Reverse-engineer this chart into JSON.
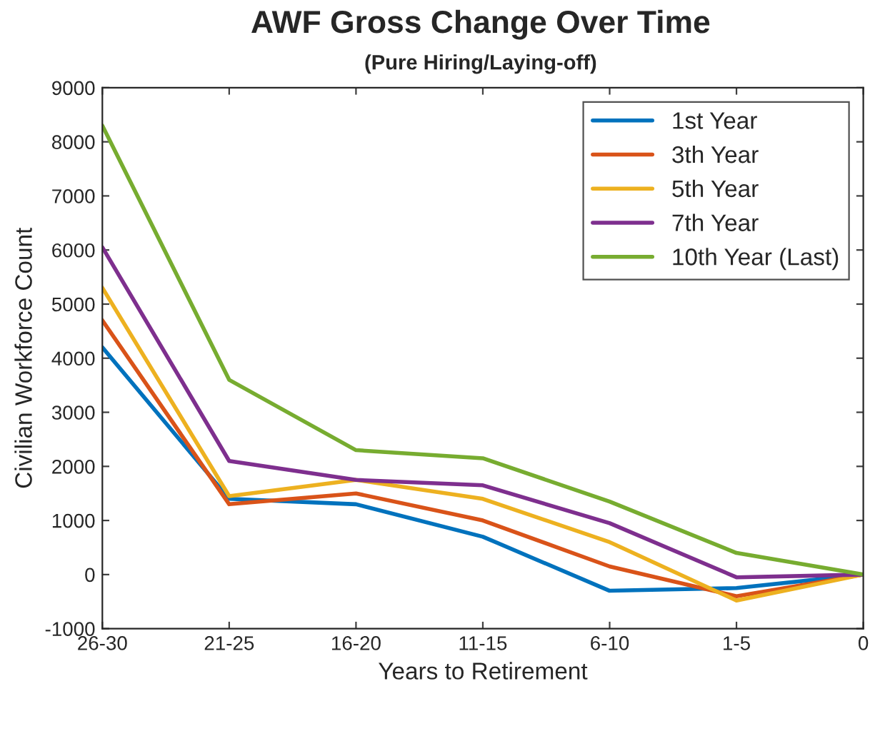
{
  "chart_data": {
    "type": "line",
    "title": "AWF Gross Change Over Time",
    "subtitle": "(Pure Hiring/Laying-off)",
    "xlabel": "Years to Retirement",
    "ylabel": "Civilian Workforce Count",
    "categories": [
      "26-30",
      "21-25",
      "16-20",
      "11-15",
      "6-10",
      "1-5",
      "0"
    ],
    "series": [
      {
        "name": "1st Year",
        "color": "#0072bd",
        "values": [
          4200,
          1400,
          1300,
          700,
          -300,
          -250,
          0
        ]
      },
      {
        "name": "3th Year",
        "color": "#d95319",
        "values": [
          4700,
          1300,
          1500,
          1000,
          150,
          -400,
          0
        ]
      },
      {
        "name": "5th Year",
        "color": "#edb120",
        "values": [
          5300,
          1450,
          1750,
          1400,
          600,
          -480,
          0
        ]
      },
      {
        "name": "7th Year",
        "color": "#7e2f8e",
        "values": [
          6050,
          2100,
          1750,
          1650,
          950,
          -50,
          0
        ]
      },
      {
        "name": "10th Year (Last)",
        "color": "#77ac30",
        "values": [
          8300,
          3600,
          2300,
          2150,
          1350,
          400,
          0
        ]
      }
    ],
    "ylim": [
      -1000,
      9000
    ],
    "yticks": [
      -1000,
      0,
      1000,
      2000,
      3000,
      4000,
      5000,
      6000,
      7000,
      8000,
      9000
    ],
    "grid": false,
    "legend": "top right",
    "marker": "none",
    "line_style": "solid"
  }
}
